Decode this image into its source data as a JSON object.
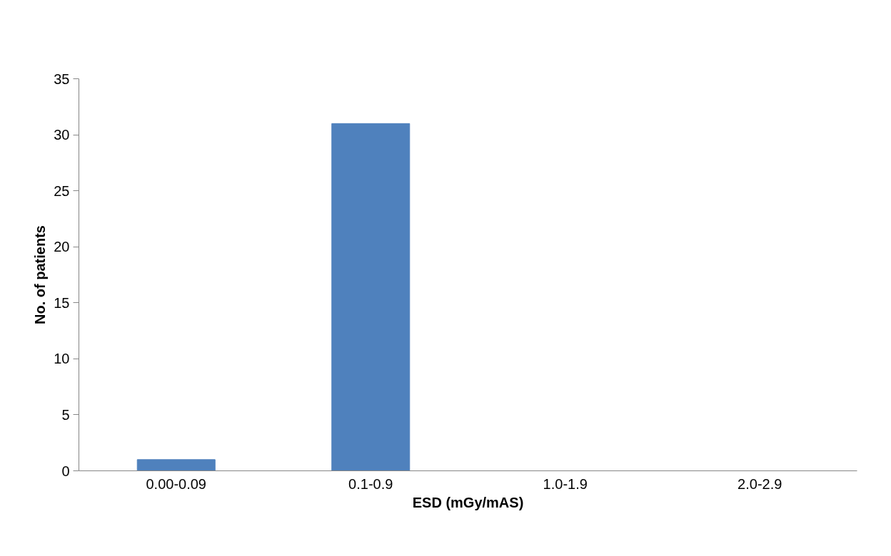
{
  "chart_data": {
    "type": "bar",
    "xlabel": "ESD (mGy/mAS)",
    "ylabel": "No. of patients",
    "categories": [
      "0.00-0.09",
      "0.1-0.9",
      "1.0-1.9",
      "2.0-2.9"
    ],
    "values": [
      1,
      31,
      0,
      0
    ],
    "color": "#4f81bd",
    "ylim": [
      0,
      35
    ],
    "yticks": [
      0,
      5,
      10,
      15,
      20,
      25,
      30,
      35
    ],
    "grid": false
  }
}
